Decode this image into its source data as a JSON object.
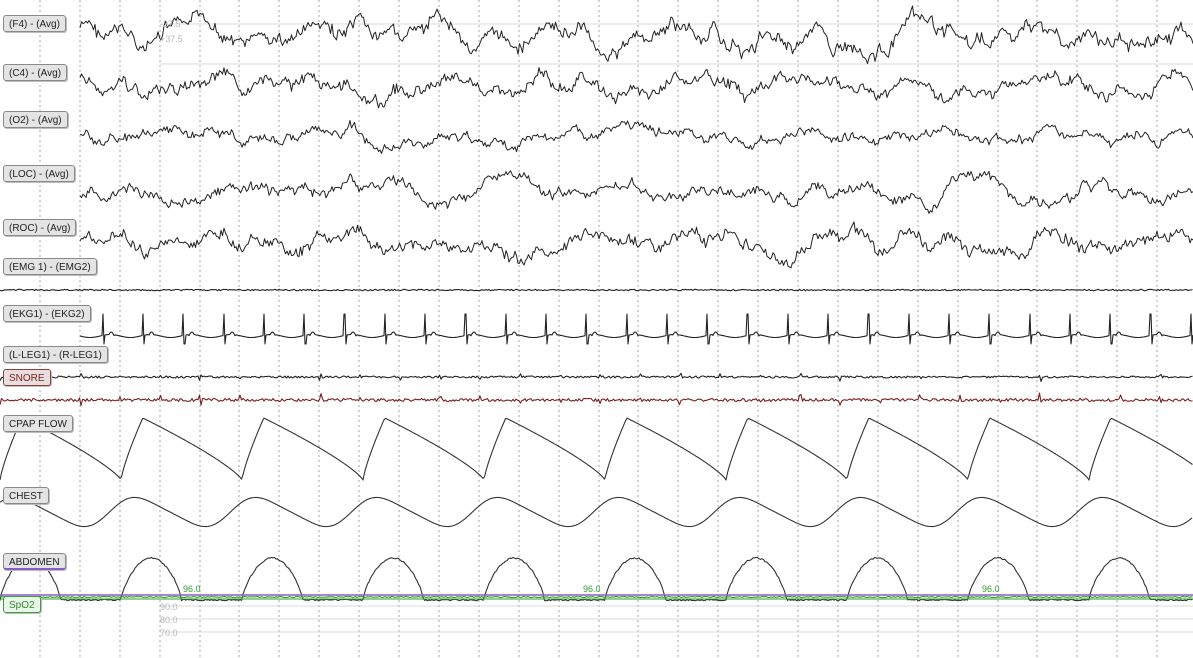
{
  "channels": [
    {
      "id": "f4",
      "label": "(F4) - (Avg)",
      "kind": "eeg",
      "color": "#222222"
    },
    {
      "id": "c4",
      "label": "(C4) - (Avg)",
      "kind": "eeg",
      "color": "#222222"
    },
    {
      "id": "o2",
      "label": "(O2) - (Avg)",
      "kind": "eeg",
      "color": "#222222"
    },
    {
      "id": "loc",
      "label": "(LOC) - (Avg)",
      "kind": "eog",
      "color": "#222222"
    },
    {
      "id": "roc",
      "label": "(ROC) - (Avg)",
      "kind": "eog",
      "color": "#222222"
    },
    {
      "id": "emg",
      "label": "(EMG 1) - (EMG2)",
      "kind": "emg",
      "color": "#222222"
    },
    {
      "id": "ekg",
      "label": "(EKG1) - (EKG2)",
      "kind": "ekg",
      "color": "#222222"
    },
    {
      "id": "leg",
      "label": "(L-LEG1) - (R-LEG1)",
      "kind": "leg",
      "color": "#222222"
    },
    {
      "id": "snore",
      "label": "SNORE",
      "kind": "snore",
      "color": "#7a1f1f"
    },
    {
      "id": "flow",
      "label": "CPAP FLOW",
      "kind": "flow",
      "color": "#333333"
    },
    {
      "id": "chest",
      "label": "CHEST",
      "kind": "chest",
      "color": "#333333"
    },
    {
      "id": "abd",
      "label": "ABDOMEN",
      "kind": "abdomen",
      "color": "#333333"
    },
    {
      "id": "spo2",
      "label": "SpO2",
      "kind": "spo2",
      "color": "#2e9e2e"
    }
  ],
  "spo2": {
    "value_labels": [
      "96.0",
      "96.0",
      "96.0"
    ],
    "scale_labels": [
      "90.0",
      "80.0",
      "70.0"
    ],
    "line_color": "#8a5cc7",
    "trace_color": "#2e9e2e"
  },
  "eeg_scale_labels": [
    "-37.5",
    "+37.5"
  ],
  "grid": {
    "minor_divisions": 30,
    "line_color": "#555555"
  }
}
